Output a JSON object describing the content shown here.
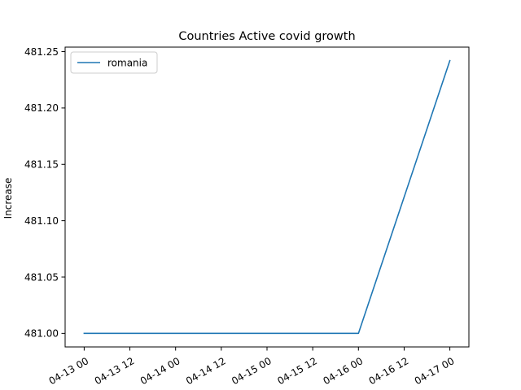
{
  "chart_data": {
    "type": "line",
    "title": "Countries Active covid growth",
    "xlabel": "",
    "ylabel": "Increase",
    "x_tick_labels": [
      "04-13 00",
      "04-13 12",
      "04-14 00",
      "04-14 12",
      "04-15 00",
      "04-15 12",
      "04-16 00",
      "04-16 12",
      "04-17 00"
    ],
    "x_tick_hours": [
      0,
      12,
      24,
      36,
      48,
      60,
      72,
      84,
      96
    ],
    "x_tick_rotation_deg": -30,
    "y_ticks": [
      481.0,
      481.05,
      481.1,
      481.15,
      481.2,
      481.25
    ],
    "y_tick_labels": [
      "481.00",
      "481.05",
      "481.10",
      "481.15",
      "481.20",
      "481.25"
    ],
    "xlim_hours": [
      -5,
      101
    ],
    "ylim": [
      480.988,
      481.254
    ],
    "grid": false,
    "legend_position": "top-left",
    "series": [
      {
        "name": "romania",
        "color": "#1f77b4",
        "x_dates": [
          "04-13 00",
          "04-14 00",
          "04-15 00",
          "04-16 00",
          "04-17 00"
        ],
        "x_hours": [
          0,
          24,
          48,
          72,
          96
        ],
        "values": [
          481.0,
          481.0,
          481.0,
          481.0,
          481.242
        ]
      }
    ]
  }
}
